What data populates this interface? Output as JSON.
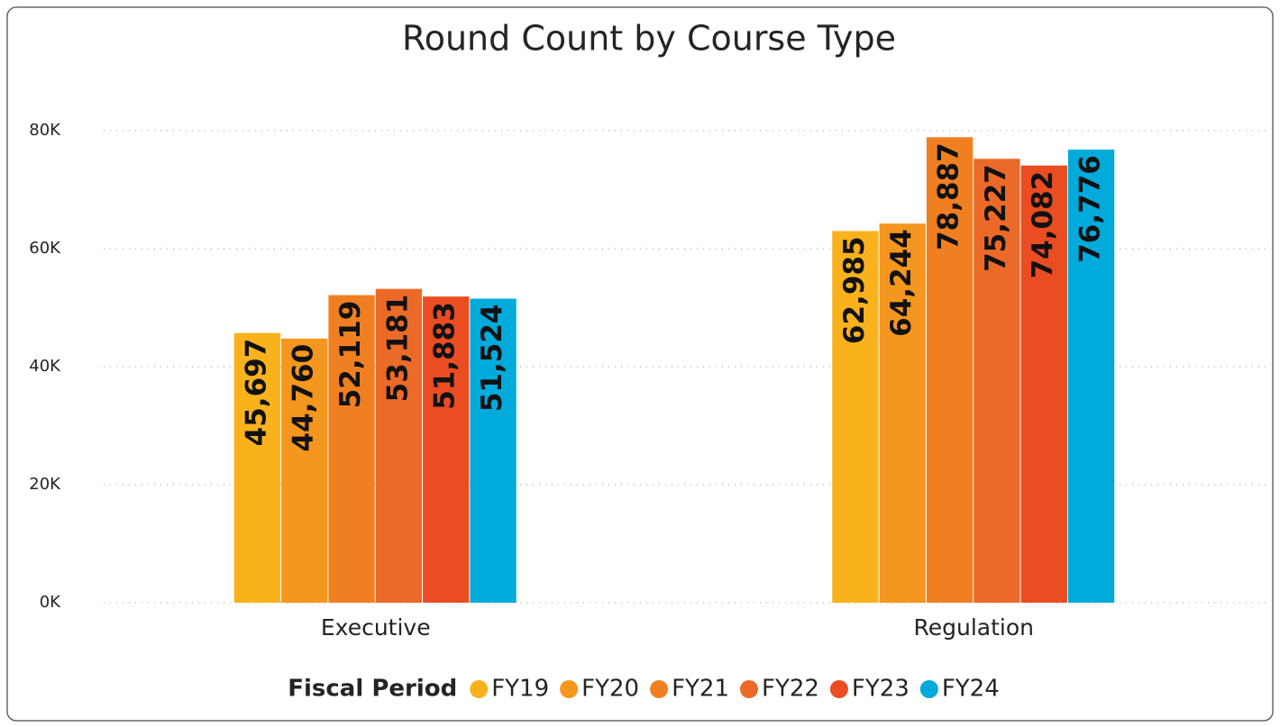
{
  "chart_data": {
    "type": "bar",
    "title": "Round Count by Course Type",
    "categories": [
      "Executive",
      "Regulation"
    ],
    "series": [
      {
        "name": "FY19",
        "color": "#F9B21C",
        "values": [
          45697,
          62985
        ],
        "value_labels": [
          "45,697",
          "62,985"
        ]
      },
      {
        "name": "FY20",
        "color": "#F5961E",
        "values": [
          44760,
          64244
        ],
        "value_labels": [
          "44,760",
          "64,244"
        ]
      },
      {
        "name": "FY21",
        "color": "#F07F22",
        "values": [
          52119,
          78887
        ],
        "value_labels": [
          "52,119",
          "78,887"
        ]
      },
      {
        "name": "FY22",
        "color": "#EC6A27",
        "values": [
          53181,
          75227
        ],
        "value_labels": [
          "53,181",
          "75,227"
        ]
      },
      {
        "name": "FY23",
        "color": "#EA4D22",
        "values": [
          51883,
          74082
        ],
        "value_labels": [
          "51,883",
          "74,082"
        ]
      },
      {
        "name": "FY24",
        "color": "#00AADB",
        "values": [
          51524,
          76776
        ],
        "value_labels": [
          "51,524",
          "76,776"
        ]
      }
    ],
    "ylim": [
      0,
      80000
    ],
    "yticks": [
      {
        "value": 0,
        "label": "0K"
      },
      {
        "value": 20000,
        "label": "20K"
      },
      {
        "value": 40000,
        "label": "40K"
      },
      {
        "value": 60000,
        "label": "60K"
      },
      {
        "value": 80000,
        "label": "80K"
      }
    ],
    "grid": true,
    "legend_title": "Fiscal Period",
    "legend": "bottom"
  }
}
